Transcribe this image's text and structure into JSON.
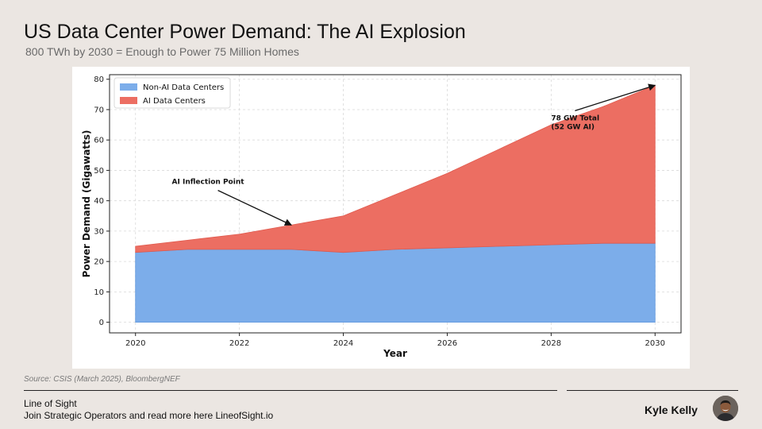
{
  "page": {
    "title": "US Data Center Power Demand: The AI Explosion",
    "subtitle": "800 TWh by 2030 = Enough to Power 75 Million Homes",
    "source": "Source: CSIS (March 2025), BloombergNEF",
    "brand": "Line of Sight",
    "tagline": "Join Strategic Operators and read more here LineofSight.io",
    "author": "Kyle Kelly"
  },
  "colors": {
    "non_ai": "#7cadea",
    "ai": "#ec6e62",
    "background": "#ebe6e2"
  },
  "chart_data": {
    "type": "area",
    "stacked": true,
    "x": [
      2020,
      2021,
      2022,
      2023,
      2024,
      2025,
      2026,
      2027,
      2028,
      2029,
      2030
    ],
    "series": [
      {
        "name": "Non-AI Data Centers",
        "values": [
          23,
          24,
          24,
          24,
          23,
          24,
          24.5,
          25,
          25.5,
          26,
          26
        ]
      },
      {
        "name": "AI Data Centers",
        "values": [
          2,
          3,
          5,
          8,
          12,
          18,
          24.5,
          32,
          39.5,
          45,
          52
        ]
      }
    ],
    "title": "",
    "xlabel": "Year",
    "ylabel": "Power Demand (Gigawatts)",
    "xlim": [
      2019.5,
      2030.5
    ],
    "ylim": [
      -3.5,
      81.5
    ],
    "xticks": [
      2020,
      2022,
      2024,
      2026,
      2028,
      2030
    ],
    "yticks": [
      0,
      10,
      20,
      30,
      40,
      50,
      60,
      70,
      80
    ],
    "grid": true,
    "legend_position": "top-left",
    "annotations": [
      {
        "text_lines": [
          "AI Inflection Point"
        ],
        "text_x": 2020.7,
        "text_y": 45.5,
        "arrow_x": 2023,
        "arrow_y": 32
      },
      {
        "text_lines": [
          "78 GW Total",
          "(52 GW AI)"
        ],
        "text_x": 2028,
        "text_y": 66.5,
        "arrow_x": 2030,
        "arrow_y": 78
      }
    ]
  }
}
